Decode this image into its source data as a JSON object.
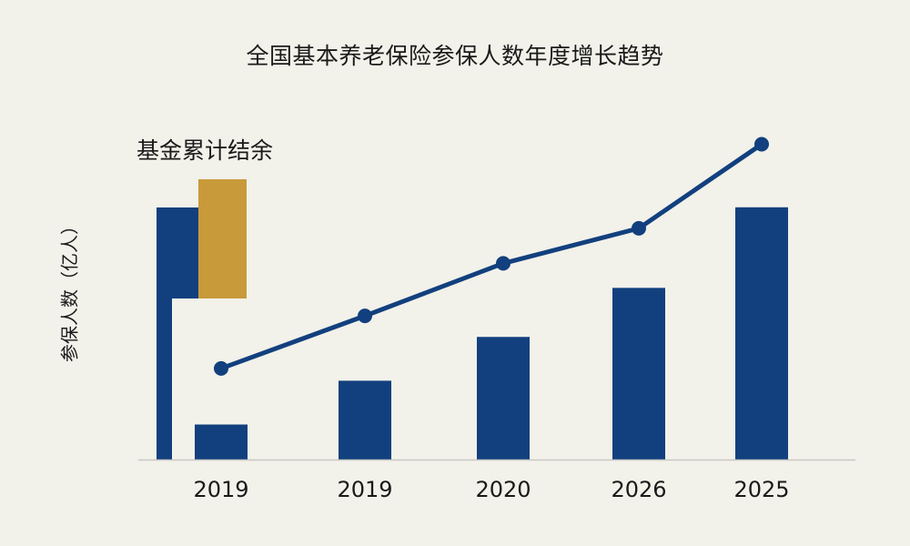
{
  "chart_data": {
    "type": "bar",
    "title": "全国基本养老保险参保人数年度增长趋势",
    "ylabel": "参保人数（亿人）",
    "xlabel": "",
    "categories": [
      "2019",
      "2019",
      "2020",
      "2026",
      "2025"
    ],
    "series": [
      {
        "kind": "bar",
        "values": [
          1,
          2.25,
          3.5,
          4.9,
          7.2
        ]
      },
      {
        "kind": "line",
        "values": [
          2.6,
          4.1,
          5.6,
          6.6,
          9.0
        ]
      }
    ],
    "legend": {
      "label": "基金累计结余",
      "placement": "top-left",
      "swatches": [
        "#12407e",
        "#c89a3a"
      ]
    },
    "ylim": [
      0,
      10
    ],
    "grid": false,
    "colors": {
      "bar": "#12407e",
      "line": "#12407e",
      "accent": "#c89a3a"
    }
  }
}
